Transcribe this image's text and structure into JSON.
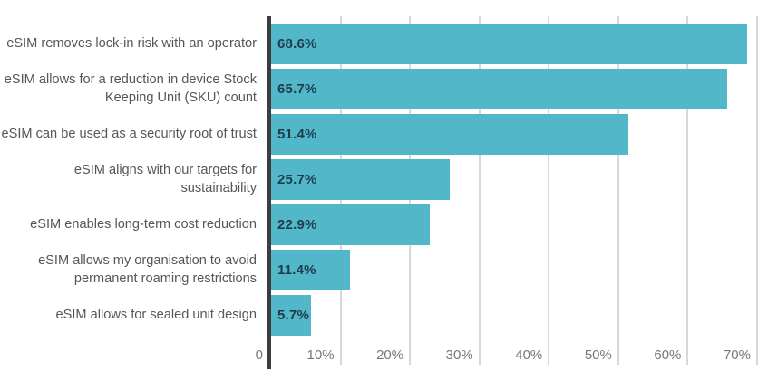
{
  "chart_data": {
    "type": "bar",
    "orientation": "horizontal",
    "title": "",
    "xlabel": "",
    "ylabel": "",
    "categories": [
      "eSIM removes lock-in risk with an operator",
      "eSIM allows for a reduction in device Stock Keeping Unit (SKU) count",
      "eSIM can be used as a security root of trust",
      "eSIM aligns with our targets for sustainability",
      "eSIM enables long-term cost reduction",
      "eSIM allows my organisation to avoid permanent roaming restrictions",
      "eSIM allows for sealed unit design"
    ],
    "values": [
      68.6,
      65.7,
      51.4,
      25.7,
      22.9,
      11.4,
      5.7
    ],
    "value_labels": [
      "68.6%",
      "65.7%",
      "51.4%",
      "25.7%",
      "22.9%",
      "11.4%",
      "5.7%"
    ],
    "x_ticks": [
      {
        "value": 0,
        "label": "0"
      },
      {
        "value": 10,
        "label": "10%"
      },
      {
        "value": 20,
        "label": "20%"
      },
      {
        "value": 30,
        "label": "30%"
      },
      {
        "value": 40,
        "label": "40%"
      },
      {
        "value": 50,
        "label": "50%"
      },
      {
        "value": 60,
        "label": "60%"
      },
      {
        "value": 70,
        "label": "70%"
      }
    ],
    "xlim": [
      0,
      71.6
    ],
    "grid": true,
    "legend": false,
    "colors": {
      "bar": "#52b8c9",
      "value_label": "#1d3c4b",
      "category_label": "#55565a",
      "tick_label": "#76777b",
      "axis_line": "#3d3d3d",
      "gridline": "#d8d8d8",
      "background": "#ffffff"
    }
  }
}
